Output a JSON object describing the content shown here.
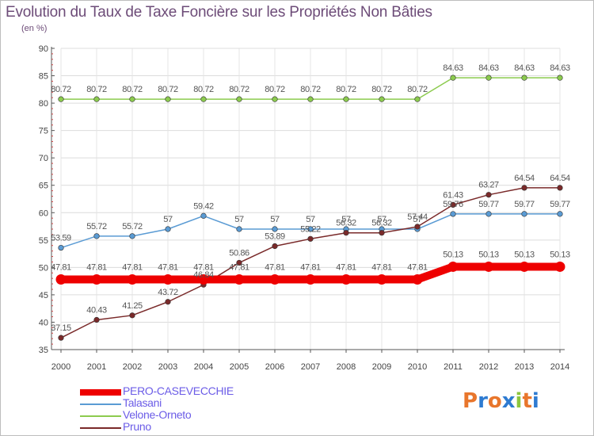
{
  "title": "Evolution du Taux de Taxe Foncière sur les Propriétés Non Bâties",
  "unit": "(en %)",
  "logo": {
    "text": "Proxiti",
    "colors": [
      "#e8762c",
      "#2e7bd1",
      "#e8762c",
      "#2e7bd1",
      "#8cc63f",
      "#e8762c",
      "#2e7bd1"
    ]
  },
  "chart_data": {
    "type": "line",
    "title": "Evolution du Taux de Taxe Foncière sur les Propriétés Non Bâties",
    "ylabel": "(en %)",
    "xlabel": "",
    "x": [
      "2000",
      "2001",
      "2002",
      "2003",
      "2004",
      "2005",
      "2006",
      "2007",
      "2008",
      "2009",
      "2010",
      "2011",
      "2012",
      "2013",
      "2014"
    ],
    "ylim": [
      35,
      90
    ],
    "yticks": [
      35,
      40,
      45,
      50,
      55,
      60,
      65,
      70,
      75,
      80,
      85,
      90
    ],
    "grid": true,
    "legend_position": "bottom-left",
    "series": [
      {
        "name": "PERO-CASEVECCHIE",
        "color": "#ee0000",
        "values": [
          47.81,
          47.81,
          47.81,
          47.81,
          47.81,
          47.81,
          47.81,
          47.81,
          47.81,
          47.81,
          47.81,
          50.13,
          50.13,
          50.13,
          50.13
        ],
        "labels": [
          "47.81",
          "47.81",
          "47.81",
          "47.81",
          "47.81",
          "47.81",
          "47.81",
          "47.81",
          "47.81",
          "47.81",
          "47.81",
          "50.13",
          "50.13",
          "50.13",
          "50.13"
        ]
      },
      {
        "name": "Talasani",
        "color": "#5a9bd4",
        "values": [
          53.59,
          55.72,
          55.72,
          57,
          59.42,
          57,
          57,
          57,
          57,
          57,
          57,
          59.76,
          59.77,
          59.77,
          59.77
        ],
        "labels": [
          "53.59",
          "55.72",
          "55.72",
          "57",
          "59.42",
          "57",
          "57",
          "57",
          "57",
          "57",
          "57",
          "59.76",
          "59.77",
          "59.77",
          "59.77"
        ]
      },
      {
        "name": "Velone-Orneto",
        "color": "#8ccb4e",
        "values": [
          80.72,
          80.72,
          80.72,
          80.72,
          80.72,
          80.72,
          80.72,
          80.72,
          80.72,
          80.72,
          80.72,
          84.63,
          84.63,
          84.63,
          84.63
        ],
        "labels": [
          "80.72",
          "80.72",
          "80.72",
          "80.72",
          "80.72",
          "80.72",
          "80.72",
          "80.72",
          "80.72",
          "80.72",
          "80.72",
          "84.63",
          "84.63",
          "84.63",
          "84.63"
        ]
      },
      {
        "name": "Pruno",
        "color": "#7a2a2a",
        "values": [
          37.15,
          40.43,
          41.25,
          43.72,
          46.84,
          50.86,
          53.89,
          55.22,
          56.32,
          56.32,
          57.44,
          61.43,
          63.27,
          64.54,
          64.54
        ],
        "labels": [
          "37.15",
          "40.43",
          "41.25",
          "43.72",
          "46.84",
          "50.86",
          "53.89",
          "55.22",
          "56.32",
          "56.32",
          "57.44",
          "61.43",
          "63.27",
          "64.54",
          "64.54"
        ]
      }
    ]
  }
}
